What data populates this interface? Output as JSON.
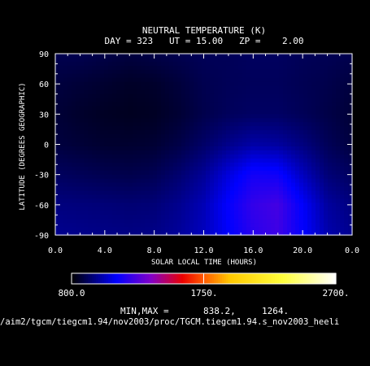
{
  "title": "NEUTRAL TEMPERATURE (K)",
  "subtitle": "DAY = 323   UT = 15.00   ZP =    2.00",
  "chart_data": {
    "type": "heatmap",
    "title": "NEUTRAL TEMPERATURE (K)",
    "xlabel": "SOLAR LOCAL TIME (HOURS)",
    "ylabel": "LATITUDE (DEGREES GEOGRAPHIC)",
    "xlim": [
      0,
      24
    ],
    "ylim": [
      -90,
      90
    ],
    "x_ticks": [
      "0.0",
      "4.0",
      "8.0",
      "12.0",
      "16.0",
      "20.0",
      "0.0"
    ],
    "x_tick_values": [
      0,
      4,
      8,
      12,
      16,
      20,
      24
    ],
    "y_ticks": [
      "90",
      "60",
      "30",
      "0",
      "-30",
      "-60",
      "-90"
    ],
    "y_tick_values": [
      90,
      60,
      30,
      0,
      -30,
      -60,
      -90
    ],
    "x_grid": [
      0,
      2,
      4,
      6,
      8,
      10,
      12,
      14,
      16,
      18,
      20,
      22,
      24
    ],
    "y_grid": [
      90,
      60,
      30,
      0,
      -30,
      -60,
      -90
    ],
    "z": [
      [
        900,
        900,
        890,
        880,
        890,
        900,
        910,
        910,
        920,
        920,
        910,
        905,
        900
      ],
      [
        880,
        870,
        860,
        850,
        855,
        875,
        900,
        910,
        915,
        915,
        905,
        895,
        880
      ],
      [
        870,
        855,
        845,
        840,
        845,
        865,
        895,
        915,
        925,
        925,
        910,
        890,
        870
      ],
      [
        880,
        870,
        860,
        860,
        865,
        890,
        930,
        975,
        1010,
        1000,
        960,
        910,
        880
      ],
      [
        920,
        910,
        900,
        895,
        905,
        940,
        990,
        1080,
        1160,
        1150,
        1040,
        950,
        920
      ],
      [
        960,
        955,
        950,
        945,
        950,
        980,
        1030,
        1130,
        1220,
        1250,
        1120,
        1000,
        960
      ],
      [
        980,
        975,
        970,
        965,
        970,
        995,
        1040,
        1120,
        1200,
        1240,
        1130,
        1020,
        980
      ]
    ],
    "colorbar": {
      "min_label": "800.0",
      "mid_label": "1750.",
      "max_label": "2700.",
      "min": 800,
      "mid": 1750,
      "max": 2700
    },
    "minmax_label": "MIN,MAX =",
    "min_value": "838.2,",
    "max_value": "1264."
  },
  "source_path": "/aim2/tgcm/tiegcm1.94/nov2003/proc/TGCM.tiegcm1.94.s_nov2003_heeli",
  "colors": {
    "background": "#000000",
    "foreground": "#ffffff"
  }
}
